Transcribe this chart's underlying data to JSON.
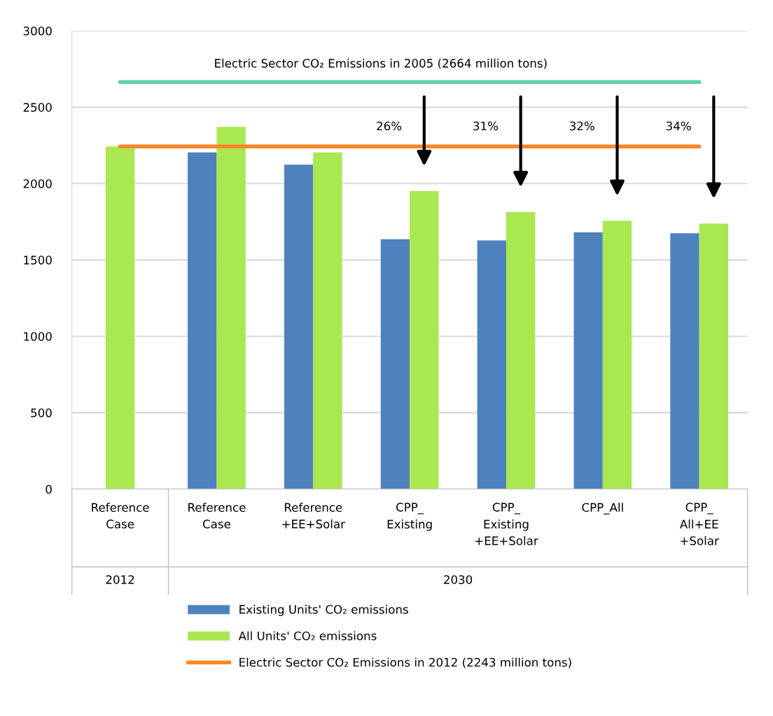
{
  "chart_data": {
    "type": "bar",
    "categories": [
      "Reference\nCase",
      "Reference\nCase",
      "Reference\n+EE+Solar",
      "CPP_\nExisting",
      "CPP_\nExisting\n+EE+Solar",
      "CPP_All",
      "CPP_\nAll+EE\n+Solar"
    ],
    "series": [
      {
        "name": "Existing Units' CO₂ emissions",
        "color": "#4f81bd",
        "values": [
          null,
          2204,
          2124,
          1636,
          1628,
          1680,
          1675
        ]
      },
      {
        "name": "All Units' CO₂ emissions",
        "color": "#a9e851",
        "values": [
          2243,
          2371,
          2204,
          1951,
          1813,
          1756,
          1738
        ]
      }
    ],
    "ylim": [
      0,
      3000
    ],
    "yticks": [
      0,
      500,
      1000,
      1500,
      2000,
      2500,
      3000
    ],
    "grid": "y",
    "legend": "bottom",
    "ref_lines": [
      {
        "axis": "y",
        "value": 2664,
        "label": "Electric Sector CO₂ Emissions in 2005 (2664 million tons)",
        "color": "#5ecfae"
      },
      {
        "axis": "y",
        "value": 2243,
        "label": "Electric Sector CO₂ Emissions in 2012 (2243 million tons)",
        "color": "#fb8627"
      }
    ],
    "annotations": [
      "2012",
      "2030",
      "26%",
      "31%",
      "32%",
      "34%"
    ]
  }
}
